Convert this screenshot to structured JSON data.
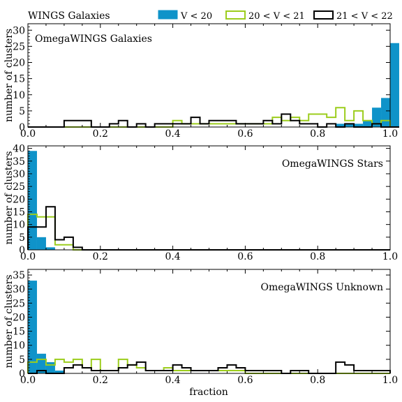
{
  "colors": {
    "V_lt_20": "#0f93c9",
    "V_20_21": "#9ccd1d",
    "V_21_22": "#000000"
  },
  "header": {
    "title": "WINGS Galaxies"
  },
  "legend": {
    "placement": "top-right",
    "items": [
      {
        "label": "V < 20",
        "style": "filled",
        "color": "#0f93c9"
      },
      {
        "label": "20 < V < 21",
        "style": "step",
        "color": "#9ccd1d"
      },
      {
        "label": "21 < V < 22",
        "style": "step",
        "color": "#000000"
      }
    ]
  },
  "xlabel": "fraction",
  "chart_data": [
    {
      "type": "histogram",
      "annotation": "OmegaWINGS Galaxies",
      "ylabel": "number of clusters",
      "xlim": [
        0.0,
        1.0
      ],
      "ylim": [
        0,
        32
      ],
      "xticks": [
        "0.0",
        "0.2",
        "0.4",
        "0.6",
        "0.8",
        "1.0"
      ],
      "yticks": [
        "0",
        "5",
        "10",
        "15",
        "20",
        "25",
        "30"
      ],
      "ytick_values": [
        0,
        5,
        10,
        15,
        20,
        25,
        30
      ],
      "bin_width": 0.025,
      "series": [
        {
          "name": "V < 20",
          "style": "filled",
          "counts": [
            0,
            0,
            0,
            0,
            0,
            0,
            0,
            0,
            0,
            0,
            0,
            0,
            0,
            0,
            0,
            0,
            0,
            0,
            0,
            0,
            0,
            0,
            0,
            0,
            0,
            0,
            0,
            0,
            0,
            0,
            0,
            0,
            0,
            0,
            1,
            1,
            1,
            2,
            6,
            9,
            26
          ]
        },
        {
          "name": "20 < V < 21",
          "style": "step",
          "counts": [
            0,
            0,
            0,
            0,
            0,
            0,
            0,
            0,
            0,
            0,
            0,
            0,
            0,
            0,
            0,
            0,
            2,
            1,
            1,
            1,
            1,
            1,
            1,
            1,
            1,
            1,
            1,
            3,
            2,
            3,
            2,
            4,
            4,
            3,
            6,
            2,
            5,
            2,
            1,
            2,
            0
          ]
        },
        {
          "name": "21 < V < 22",
          "style": "step",
          "counts": [
            0,
            0,
            0,
            0,
            2,
            2,
            2,
            0,
            0,
            1,
            2,
            0,
            1,
            0,
            1,
            1,
            1,
            1,
            3,
            1,
            2,
            2,
            2,
            1,
            1,
            1,
            2,
            1,
            4,
            2,
            1,
            1,
            0,
            1,
            0,
            1,
            0,
            0,
            1,
            0,
            0
          ]
        }
      ]
    },
    {
      "type": "histogram",
      "annotation": "OmegaWINGS Stars",
      "ylabel": "number of clusters",
      "xlim": [
        0.0,
        1.0
      ],
      "ylim": [
        0,
        41
      ],
      "xticks": [
        "0.0",
        "0.2",
        "0.4",
        "0.6",
        "0.8",
        "1.0"
      ],
      "yticks": [
        "0",
        "5",
        "10",
        "15",
        "20",
        "25",
        "30",
        "35",
        "40"
      ],
      "ytick_values": [
        0,
        5,
        10,
        15,
        20,
        25,
        30,
        35,
        40
      ],
      "bin_width": 0.025,
      "series": [
        {
          "name": "V < 20",
          "style": "filled",
          "counts": [
            39,
            5,
            1,
            0,
            0,
            0,
            0,
            0,
            0,
            0,
            0,
            0,
            0,
            0,
            0,
            0,
            0,
            0,
            0,
            0,
            0,
            0,
            0,
            0,
            0,
            0,
            0,
            0,
            0,
            0,
            0,
            0,
            0,
            0,
            0,
            0,
            0,
            0,
            0,
            0
          ]
        },
        {
          "name": "20 < V < 21",
          "style": "step",
          "counts": [
            14,
            13,
            13,
            2,
            2,
            0,
            0,
            0,
            0,
            0,
            0,
            0,
            0,
            0,
            0,
            0,
            0,
            0,
            0,
            0,
            0,
            0,
            0,
            0,
            0,
            0,
            0,
            0,
            0,
            0,
            0,
            0,
            0,
            0,
            0,
            0,
            0,
            0,
            0,
            0
          ]
        },
        {
          "name": "21 < V < 22",
          "style": "step",
          "counts": [
            9,
            9,
            17,
            4,
            5,
            1,
            0,
            0,
            0,
            0,
            0,
            0,
            0,
            0,
            0,
            0,
            0,
            0,
            0,
            0,
            0,
            0,
            0,
            0,
            0,
            0,
            0,
            0,
            0,
            0,
            0,
            0,
            0,
            0,
            0,
            0,
            0,
            0,
            0,
            0
          ]
        }
      ]
    },
    {
      "type": "histogram",
      "annotation": "OmegaWINGS Unknown",
      "ylabel": "number of clusters",
      "xlim": [
        0.0,
        1.0
      ],
      "ylim": [
        0,
        37
      ],
      "xticks": [
        "0.0",
        "0.2",
        "0.4",
        "0.6",
        "0.8",
        "1.0"
      ],
      "yticks": [
        "0",
        "5",
        "10",
        "15",
        "20",
        "25",
        "30",
        "35"
      ],
      "ytick_values": [
        0,
        5,
        10,
        15,
        20,
        25,
        30,
        35
      ],
      "bin_width": 0.025,
      "series": [
        {
          "name": "V < 20",
          "style": "filled",
          "counts": [
            33,
            7,
            4,
            1,
            0,
            0,
            0,
            0,
            0,
            0,
            0,
            0,
            0,
            0,
            0,
            0,
            0,
            0,
            0,
            0,
            0,
            0,
            0,
            0,
            0,
            0,
            0,
            0,
            0,
            0,
            0,
            0,
            0,
            0,
            0,
            0,
            0,
            0,
            0,
            0
          ]
        },
        {
          "name": "20 < V < 21",
          "style": "step",
          "counts": [
            4,
            5,
            3,
            5,
            4,
            5,
            2,
            5,
            1,
            1,
            5,
            3,
            2,
            1,
            1,
            2,
            1,
            1,
            1,
            1,
            1,
            1,
            1,
            1,
            0,
            0,
            0,
            0,
            0,
            0,
            0,
            0,
            0,
            0,
            0,
            0,
            0,
            0,
            0,
            0
          ]
        },
        {
          "name": "21 < V < 22",
          "style": "step",
          "counts": [
            0,
            1,
            0,
            0,
            2,
            3,
            2,
            1,
            1,
            1,
            2,
            3,
            4,
            1,
            1,
            1,
            3,
            2,
            1,
            1,
            1,
            2,
            3,
            2,
            1,
            1,
            1,
            1,
            0,
            1,
            1,
            0,
            0,
            0,
            4,
            3,
            1,
            1,
            1,
            1
          ]
        }
      ]
    }
  ]
}
